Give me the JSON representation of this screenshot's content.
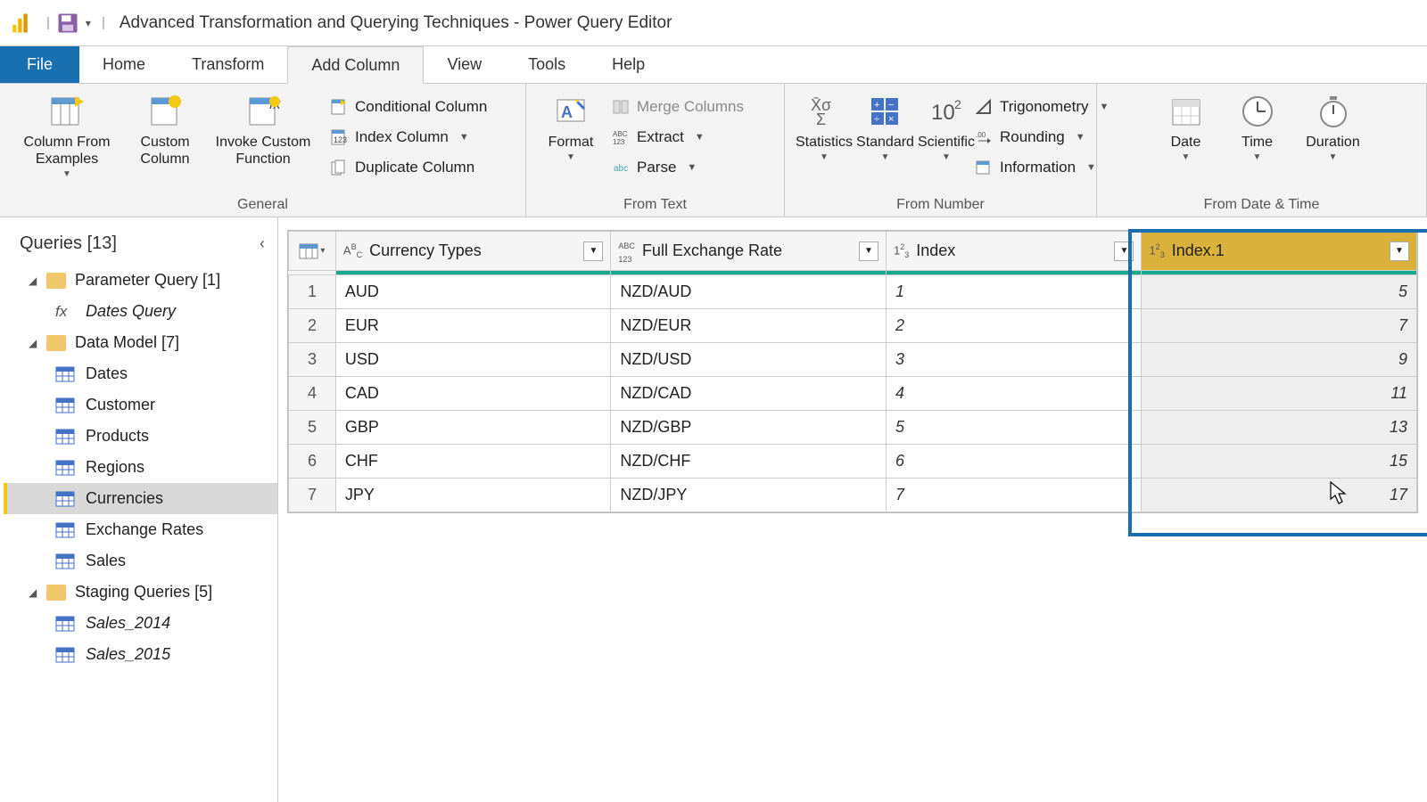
{
  "title": "Advanced Transformation and Querying Techniques - Power Query Editor",
  "tabs": {
    "file": "File",
    "home": "Home",
    "transform": "Transform",
    "addcolumn": "Add Column",
    "view": "View",
    "tools": "Tools",
    "help": "Help"
  },
  "ribbon": {
    "general": {
      "label": "General",
      "column_from_examples": "Column From Examples",
      "custom_column": "Custom Column",
      "invoke_custom_function": "Invoke Custom Function",
      "conditional_column": "Conditional Column",
      "index_column": "Index Column",
      "duplicate_column": "Duplicate Column"
    },
    "from_text": {
      "label": "From Text",
      "format": "Format",
      "merge_columns": "Merge Columns",
      "extract": "Extract",
      "parse": "Parse"
    },
    "from_number": {
      "label": "From Number",
      "statistics": "Statistics",
      "standard": "Standard",
      "scientific": "Scientific",
      "trigonometry": "Trigonometry",
      "rounding": "Rounding",
      "information": "Information"
    },
    "from_datetime": {
      "label": "From Date & Time",
      "date": "Date",
      "time": "Time",
      "duration": "Duration"
    }
  },
  "queries": {
    "header": "Queries [13]",
    "folders": [
      {
        "label": "Parameter Query [1]",
        "items": [
          {
            "label": "Dates Query",
            "icon": "fx"
          }
        ]
      },
      {
        "label": "Data Model [7]",
        "items": [
          {
            "label": "Dates",
            "icon": "table"
          },
          {
            "label": "Customer",
            "icon": "table"
          },
          {
            "label": "Products",
            "icon": "table"
          },
          {
            "label": "Regions",
            "icon": "table"
          },
          {
            "label": "Currencies",
            "icon": "table",
            "selected": true
          },
          {
            "label": "Exchange Rates",
            "icon": "table"
          },
          {
            "label": "Sales",
            "icon": "table"
          }
        ]
      },
      {
        "label": "Staging Queries [5]",
        "items": [
          {
            "label": "Sales_2014",
            "icon": "table",
            "italic": true
          },
          {
            "label": "Sales_2015",
            "icon": "table",
            "italic": true
          }
        ]
      }
    ]
  },
  "grid": {
    "columns": [
      {
        "name": "Currency Types",
        "type": "text"
      },
      {
        "name": "Full Exchange Rate",
        "type": "any"
      },
      {
        "name": "Index",
        "type": "number"
      },
      {
        "name": "Index.1",
        "type": "number",
        "selected": true
      }
    ],
    "rows": [
      {
        "n": "1",
        "c1": "AUD",
        "c2": "NZD/AUD",
        "c3": "1",
        "c4": "5"
      },
      {
        "n": "2",
        "c1": "EUR",
        "c2": "NZD/EUR",
        "c3": "2",
        "c4": "7"
      },
      {
        "n": "3",
        "c1": "USD",
        "c2": "NZD/USD",
        "c3": "3",
        "c4": "9"
      },
      {
        "n": "4",
        "c1": "CAD",
        "c2": "NZD/CAD",
        "c3": "4",
        "c4": "11"
      },
      {
        "n": "5",
        "c1": "GBP",
        "c2": "NZD/GBP",
        "c3": "5",
        "c4": "13"
      },
      {
        "n": "6",
        "c1": "CHF",
        "c2": "NZD/CHF",
        "c3": "6",
        "c4": "15"
      },
      {
        "n": "7",
        "c1": "JPY",
        "c2": "NZD/JPY",
        "c3": "7",
        "c4": "17"
      }
    ]
  },
  "colors": {
    "file_tab_bg": "#1a6fb0",
    "accent_yellow": "#f2c811",
    "selected_col_bg": "#d9b13b",
    "quality_green": "#17a98c",
    "highlight_border": "#1a6fb0"
  }
}
